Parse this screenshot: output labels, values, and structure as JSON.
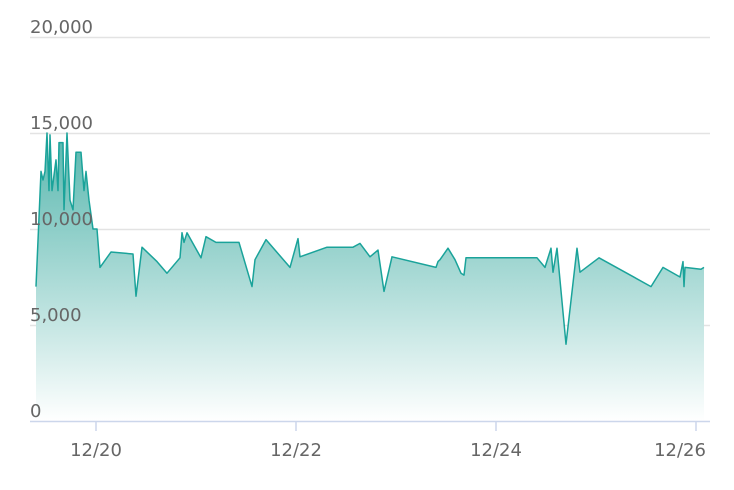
{
  "chart_data": {
    "type": "area",
    "title": "",
    "xlabel": "",
    "ylabel": "",
    "ylim": [
      0,
      20000
    ],
    "yticks": [
      0,
      5000,
      10000,
      15000,
      20000
    ],
    "ytick_labels": [
      "0",
      "5,000",
      "10,000",
      "15,000",
      "20,000"
    ],
    "xticks": [
      "12/20",
      "12/22",
      "12/24",
      "12/26"
    ],
    "grid": true,
    "legend": "none",
    "colors": {
      "line": "#1aa39a",
      "fill_top": "#4fb3aa",
      "fill_bottom": "#ffffff",
      "grid": "#e3e3e3",
      "axis": "#ccd6eb"
    },
    "series": [
      {
        "x": [
          "12/19 09:36",
          "12/19 10:48",
          "12/19 11:17",
          "12/19 11:46",
          "12/19 12:14",
          "12/19 12:43",
          "12/19 12:58",
          "12/19 13:26",
          "12/19 14:24",
          "12/19 14:53",
          "12/19 15:07",
          "12/19 16:05",
          "12/19 16:19",
          "12/19 17:02",
          "12/19 17:46",
          "12/19 18:29",
          "12/19 19:12",
          "12/19 20:24",
          "12/19 21:07",
          "12/19 21:36",
          "12/19 22:19",
          "12/19 23:17",
          "12/20 00:14",
          "12/20 00:58",
          "12/20 03:36",
          "12/20 08:53",
          "12/20 09:36",
          "12/20 11:02",
          "12/20 14:38",
          "12/20 17:02",
          "12/20 20:10",
          "12/20 20:38",
          "12/20 21:07",
          "12/20 21:50",
          "12/21 01:12",
          "12/21 02:24",
          "12/21 04:48",
          "12/21 10:19",
          "12/21 13:26",
          "12/21 14:10",
          "12/21 16:48",
          "12/21 22:34",
          "12/22 00:29",
          "12/22 00:58",
          "12/22 07:26",
          "12/22 13:41",
          "12/22 15:22",
          "12/22 17:46",
          "12/22 19:41",
          "12/22 21:07",
          "12/22 23:02",
          "12/23 09:36",
          "12/23 10:05",
          "12/23 10:34",
          "12/23 12:29",
          "12/23 14:10",
          "12/23 15:36",
          "12/23 16:19",
          "12/23 16:48",
          "12/24 09:50",
          "12/24 11:46",
          "12/24 13:12",
          "12/24 13:41",
          "12/24 14:38",
          "12/24 16:48",
          "12/24 19:26",
          "12/24 20:10",
          "12/25 00:43",
          "12/25 13:12",
          "12/25 16:05",
          "12/25 20:10",
          "12/25 20:53",
          "12/25 21:07",
          "12/25 21:22",
          "12/26 01:12",
          "12/26 01:55"
        ],
        "y": [
          7000,
          13000,
          12550,
          13000,
          15000,
          12000,
          14900,
          12000,
          13600,
          12000,
          14500,
          14500,
          11000,
          15000,
          11500,
          11000,
          14000,
          14000,
          12000,
          13000,
          11500,
          10000,
          10000,
          8000,
          8800,
          8700,
          6500,
          9050,
          8300,
          7700,
          8500,
          9800,
          9300,
          9800,
          8500,
          9600,
          9300,
          9300,
          7000,
          8400,
          9450,
          8000,
          9500,
          8550,
          9050,
          9050,
          9250,
          8550,
          8900,
          6750,
          8550,
          8000,
          8300,
          8400,
          9000,
          8400,
          7700,
          7600,
          8500,
          8500,
          8000,
          9000,
          7750,
          9000,
          4000,
          9000,
          7750,
          8500,
          7000,
          8000,
          7500,
          8300,
          7000,
          8000,
          7900,
          8000
        ]
      }
    ]
  }
}
